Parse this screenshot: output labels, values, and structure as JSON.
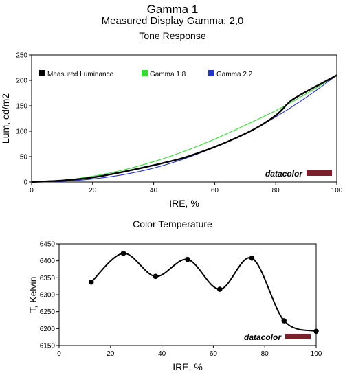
{
  "header": {
    "title": "Gamma 1",
    "subtitle": "Measured Display Gamma: 2,0"
  },
  "brand": {
    "logo_text": "datacolor",
    "bar_color": "#7a1f2b"
  },
  "chart_data": [
    {
      "type": "line",
      "title": "Tone Response",
      "xlabel": "IRE, %",
      "ylabel": "Lum, cd/m2",
      "xlim": [
        0,
        100
      ],
      "ylim": [
        0,
        250
      ],
      "xticks": [
        0,
        20,
        40,
        60,
        80,
        100
      ],
      "yticks": [
        0,
        50,
        100,
        150,
        200,
        250
      ],
      "legend_position": "top",
      "grid": false,
      "series": [
        {
          "name": "Measured Luminance",
          "color": "#000000",
          "x": [
            0,
            10,
            20,
            30,
            40,
            50,
            60,
            70,
            75,
            80,
            82,
            85,
            90,
            95,
            100
          ],
          "y": [
            0,
            3,
            9,
            20,
            33,
            48,
            69,
            95,
            111,
            131,
            142,
            160,
            178,
            194,
            210
          ]
        },
        {
          "name": "Gamma 1.8",
          "color": "#33dd33",
          "x": [
            0,
            10,
            20,
            30,
            40,
            50,
            60,
            70,
            80,
            90,
            100
          ],
          "y": [
            0,
            3.3,
            11.5,
            23.7,
            40.1,
            60.3,
            84.4,
            111.9,
            140.4,
            173.6,
            210
          ]
        },
        {
          "name": "Gamma 2.2",
          "color": "#2233cc",
          "x": [
            0,
            10,
            20,
            30,
            40,
            50,
            60,
            70,
            80,
            90,
            100
          ],
          "y": [
            0,
            1.3,
            6.0,
            14.5,
            27.4,
            45.7,
            68.7,
            95.2,
            128.1,
            166.6,
            210
          ]
        }
      ]
    },
    {
      "type": "line",
      "title": "Color Temperature",
      "xlabel": "IRE, %",
      "ylabel": "T, Kelvin",
      "xlim": [
        0,
        100
      ],
      "ylim": [
        6150,
        6450
      ],
      "xticks": [
        0,
        20,
        40,
        60,
        80,
        100
      ],
      "yticks": [
        6150,
        6200,
        6250,
        6300,
        6350,
        6400,
        6450
      ],
      "grid": false,
      "series": [
        {
          "name": "",
          "color": "#000000",
          "x": [
            12.5,
            25,
            37.5,
            50,
            62.5,
            75,
            87.5,
            100
          ],
          "y": [
            6337,
            6422,
            6354,
            6404,
            6316,
            6408,
            6223,
            6192
          ]
        }
      ]
    }
  ]
}
